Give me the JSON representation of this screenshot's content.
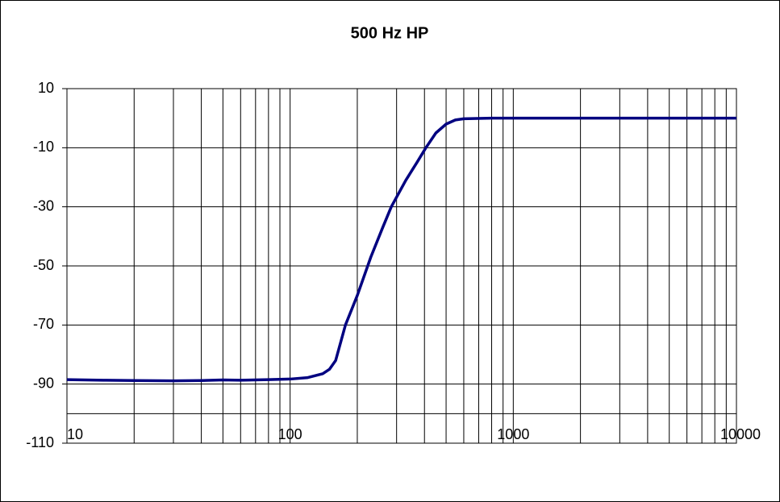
{
  "chart_data": {
    "type": "line",
    "title": "500 Hz HP",
    "x": [
      10,
      15,
      20,
      30,
      40,
      50,
      60,
      80,
      100,
      120,
      140,
      150,
      160,
      177,
      200,
      230,
      260,
      284,
      330,
      370,
      406,
      450,
      500,
      550,
      600,
      800,
      1000,
      3000,
      10000
    ],
    "series": [
      {
        "color": "#000080",
        "values": [
          -88.5,
          -88.7,
          -88.8,
          -88.9,
          -88.8,
          -88.6,
          -88.7,
          -88.5,
          -88.3,
          -87.8,
          -86.5,
          -85,
          -82,
          -70,
          -60,
          -47,
          -37,
          -30,
          -21,
          -15,
          -10,
          -5,
          -2,
          -0.6,
          -0.2,
          0,
          0,
          0,
          0
        ]
      }
    ],
    "xlim": [
      10,
      10000
    ],
    "xticks": [
      10,
      100,
      1000,
      10000
    ],
    "xlog": true,
    "minor_grid": true,
    "ylim": [
      -110,
      10
    ],
    "yticks": [
      10,
      -10,
      -30,
      -50,
      -70,
      -90,
      -110
    ],
    "x_axis_at": -100,
    "grid": true
  }
}
